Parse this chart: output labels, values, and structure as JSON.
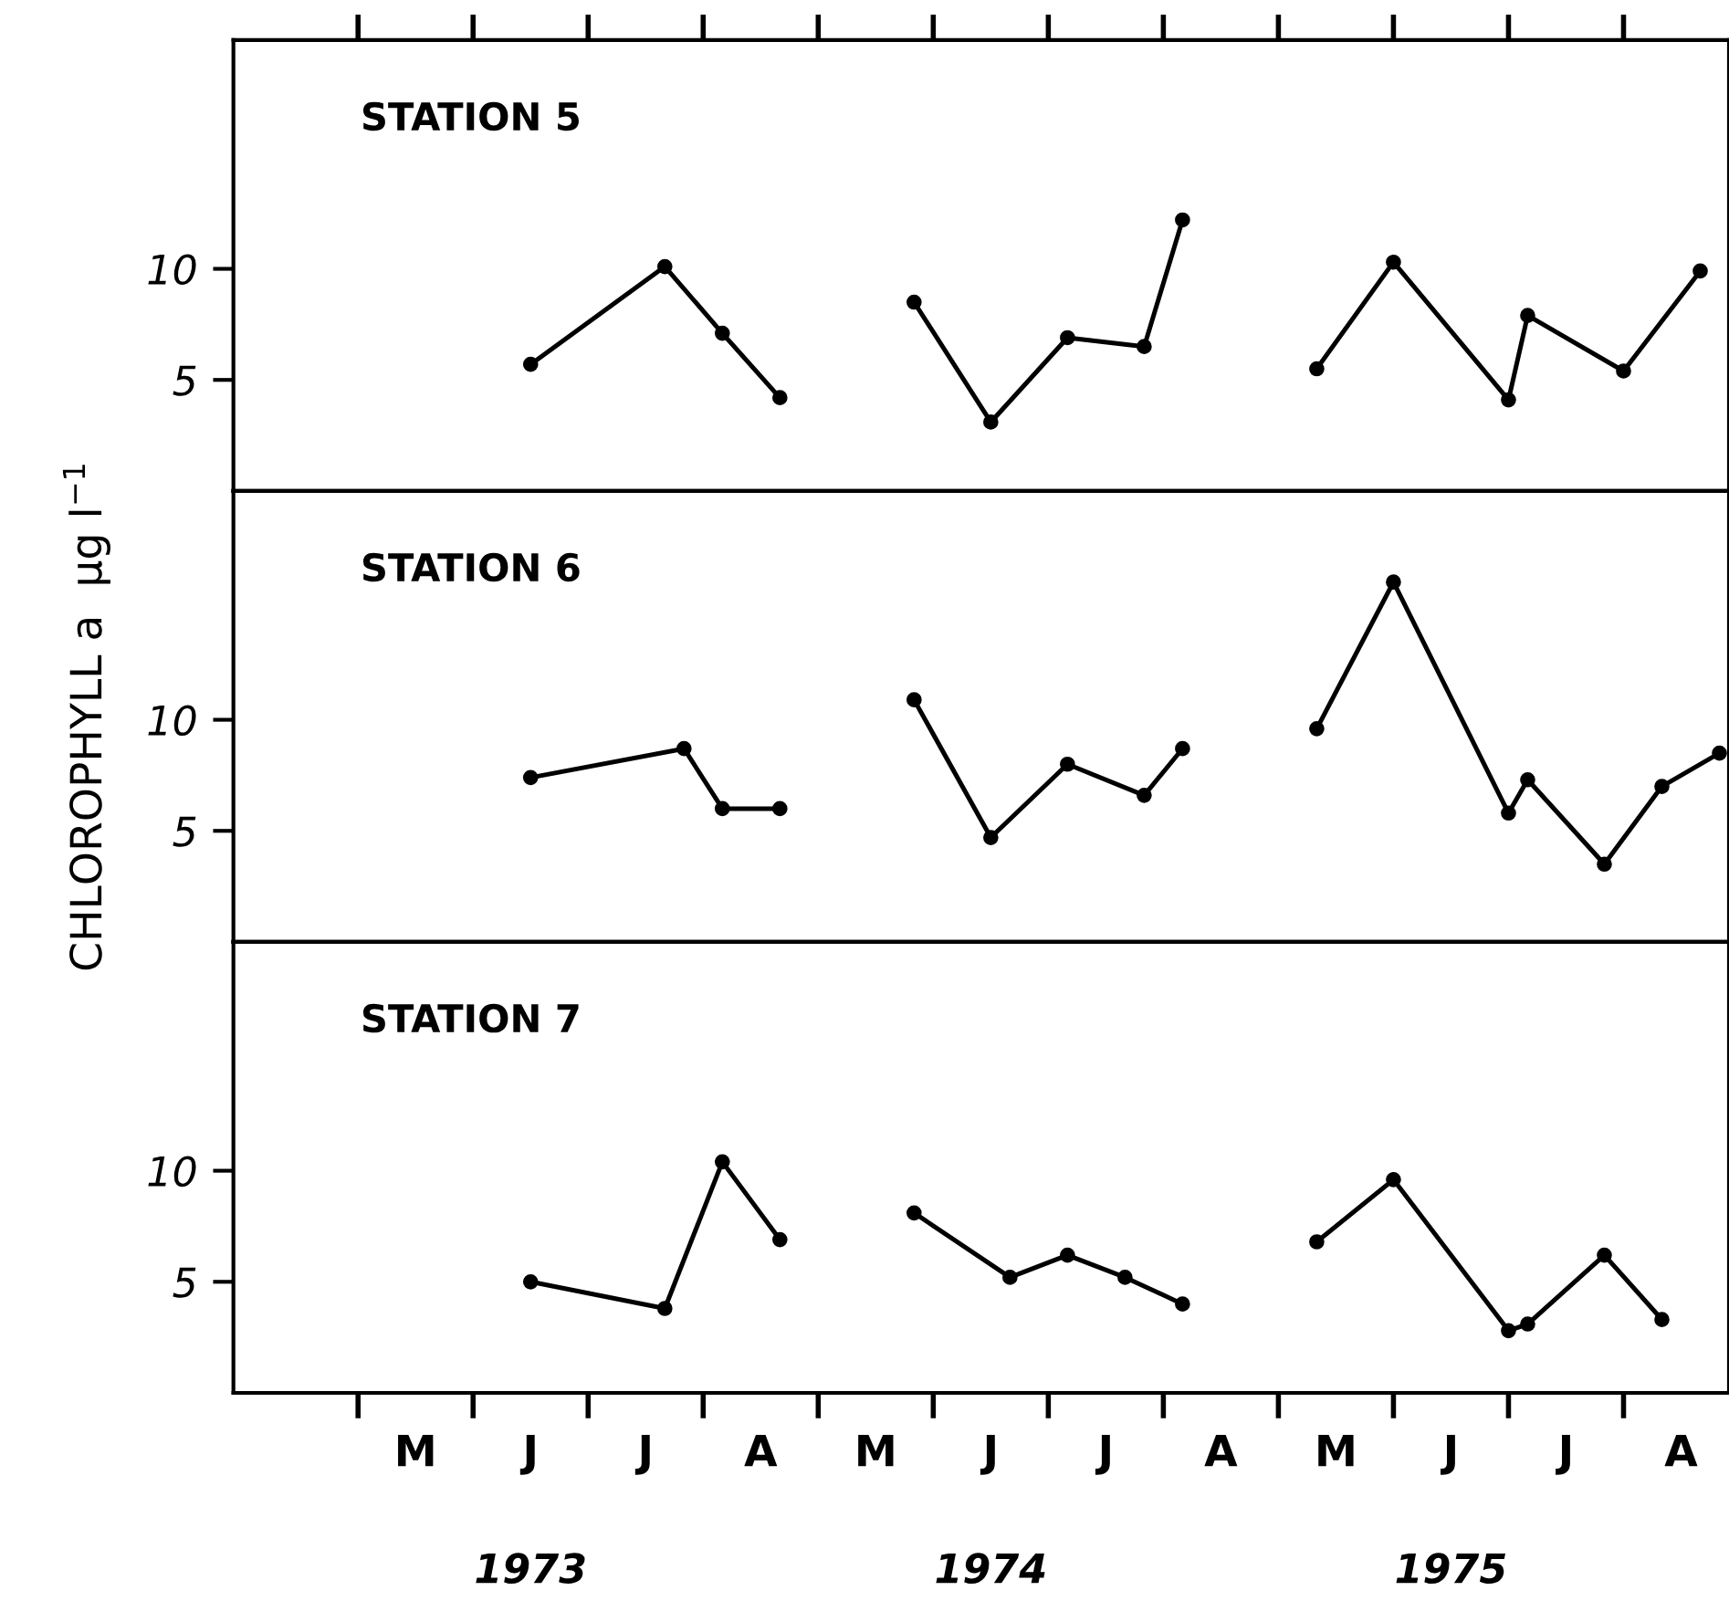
{
  "chart_data": [
    {
      "type": "line",
      "title": "STATION 5",
      "marker": "circle",
      "line_style": "solid",
      "tick_labels": "y",
      "ylim": [
        0,
        20.3
      ],
      "yticks": [
        5,
        10
      ],
      "categories": [
        null,
        null,
        null,
        null,
        null,
        null,
        null,
        null,
        null,
        null,
        null,
        null,
        null,
        null,
        null,
        null,
        null,
        null,
        null,
        null,
        null,
        null,
        null,
        null,
        null,
        null,
        null,
        null,
        null,
        null,
        null,
        null,
        null,
        null,
        null,
        null,
        null,
        null,
        null,
        null,
        null,
        null,
        null,
        null,
        null,
        null,
        null,
        null,
        null,
        null,
        null,
        null,
        null,
        null,
        null,
        null,
        null,
        null,
        null,
        null,
        null,
        null,
        null,
        null,
        null,
        null,
        null,
        null,
        null,
        null,
        null,
        null,
        null,
        null,
        null,
        null,
        null,
        null
      ],
      "series": [
        {
          "color": "#000000",
          "values": [
            null,
            null,
            null,
            null,
            null,
            null,
            null,
            null,
            null,
            null,
            null,
            null,
            null,
            null,
            null,
            5.7,
            null,
            null,
            null,
            null,
            null,
            null,
            10.1,
            null,
            null,
            7.1,
            null,
            null,
            4.2,
            null,
            null,
            null,
            null,
            null,
            null,
            null,
            null,
            null,
            null,
            null,
            null,
            null,
            null,
            null,
            null,
            null,
            null,
            null,
            null,
            null,
            null,
            null,
            null,
            null,
            null,
            null,
            null,
            null,
            null,
            null,
            null,
            null,
            null,
            null,
            null,
            null,
            null,
            null,
            null,
            null,
            null,
            null,
            null,
            null,
            null,
            null,
            null,
            null
          ]
        },
        {
          "color": "#000000",
          "values": [
            null,
            null,
            null,
            null,
            null,
            null,
            null,
            null,
            null,
            null,
            null,
            null,
            null,
            null,
            null,
            null,
            null,
            null,
            null,
            null,
            null,
            null,
            null,
            null,
            null,
            null,
            null,
            null,
            null,
            null,
            null,
            null,
            null,
            null,
            null,
            8.5,
            null,
            null,
            null,
            3.1,
            null,
            null,
            null,
            6.9,
            null,
            null,
            null,
            6.5,
            null,
            12.2,
            null,
            null,
            null,
            null,
            null,
            null,
            null,
            null,
            null,
            null,
            null,
            null,
            null,
            null,
            null,
            null,
            null,
            null,
            null,
            null,
            null,
            null,
            null,
            null,
            null,
            null,
            null,
            null
          ]
        },
        {
          "color": "#000000",
          "values": [
            null,
            null,
            null,
            null,
            null,
            null,
            null,
            null,
            null,
            null,
            null,
            null,
            null,
            null,
            null,
            null,
            null,
            null,
            null,
            null,
            null,
            null,
            null,
            null,
            null,
            null,
            null,
            null,
            null,
            null,
            null,
            null,
            null,
            null,
            null,
            null,
            null,
            null,
            null,
            null,
            null,
            null,
            null,
            null,
            null,
            null,
            null,
            null,
            null,
            null,
            null,
            null,
            null,
            null,
            null,
            null,
            5.5,
            null,
            null,
            null,
            10.3,
            null,
            null,
            null,
            null,
            null,
            4.1,
            7.9,
            null,
            null,
            null,
            null,
            5.4,
            null,
            null,
            null,
            9.9,
            null
          ]
        }
      ]
    },
    {
      "type": "line",
      "title": "STATION 6",
      "ylabel": "CHLOROPHYLL a  µg l$^{−1}$",
      "marker": "circle",
      "line_style": "solid",
      "tick_labels": "y",
      "ylim": [
        0,
        20.3
      ],
      "yticks": [
        5,
        10
      ],
      "categories": [
        null,
        null,
        null,
        null,
        null,
        null,
        null,
        null,
        null,
        null,
        null,
        null,
        null,
        null,
        null,
        null,
        null,
        null,
        null,
        null,
        null,
        null,
        null,
        null,
        null,
        null,
        null,
        null,
        null,
        null,
        null,
        null,
        null,
        null,
        null,
        null,
        null,
        null,
        null,
        null,
        null,
        null,
        null,
        null,
        null,
        null,
        null,
        null,
        null,
        null,
        null,
        null,
        null,
        null,
        null,
        null,
        null,
        null,
        null,
        null,
        null,
        null,
        null,
        null,
        null,
        null,
        null,
        null,
        null,
        null,
        null,
        null,
        null,
        null,
        null,
        null,
        null,
        null
      ],
      "series": [
        {
          "color": "#000000",
          "values": [
            null,
            null,
            null,
            null,
            null,
            null,
            null,
            null,
            null,
            null,
            null,
            null,
            null,
            null,
            null,
            7.4,
            null,
            null,
            null,
            null,
            null,
            null,
            null,
            8.7,
            null,
            6.0,
            null,
            null,
            6.0,
            null,
            null,
            null,
            null,
            null,
            null,
            null,
            null,
            null,
            null,
            null,
            null,
            null,
            null,
            null,
            null,
            null,
            null,
            null,
            null,
            null,
            null,
            null,
            null,
            null,
            null,
            null,
            null,
            null,
            null,
            null,
            null,
            null,
            null,
            null,
            null,
            null,
            null,
            null,
            null,
            null,
            null,
            null,
            null,
            null,
            null,
            null,
            null,
            null
          ]
        },
        {
          "color": "#000000",
          "values": [
            null,
            null,
            null,
            null,
            null,
            null,
            null,
            null,
            null,
            null,
            null,
            null,
            null,
            null,
            null,
            null,
            null,
            null,
            null,
            null,
            null,
            null,
            null,
            null,
            null,
            null,
            null,
            null,
            null,
            null,
            null,
            null,
            null,
            null,
            null,
            10.9,
            null,
            null,
            null,
            4.7,
            null,
            null,
            null,
            8.0,
            null,
            null,
            null,
            6.6,
            null,
            8.7,
            null,
            null,
            null,
            null,
            null,
            null,
            null,
            null,
            null,
            null,
            null,
            null,
            null,
            null,
            null,
            null,
            null,
            null,
            null,
            null,
            null,
            null,
            null,
            null,
            null,
            null,
            null,
            null
          ]
        },
        {
          "color": "#000000",
          "values": [
            null,
            null,
            null,
            null,
            null,
            null,
            null,
            null,
            null,
            null,
            null,
            null,
            null,
            null,
            null,
            null,
            null,
            null,
            null,
            null,
            null,
            null,
            null,
            null,
            null,
            null,
            null,
            null,
            null,
            null,
            null,
            null,
            null,
            null,
            null,
            null,
            null,
            null,
            null,
            null,
            null,
            null,
            null,
            null,
            null,
            null,
            null,
            null,
            null,
            null,
            null,
            null,
            null,
            null,
            null,
            null,
            9.6,
            null,
            null,
            null,
            16.2,
            null,
            null,
            null,
            null,
            null,
            5.8,
            7.3,
            null,
            null,
            null,
            3.5,
            null,
            null,
            7.0,
            null,
            null,
            8.5
          ]
        }
      ]
    },
    {
      "type": "line",
      "title": "STATION 7",
      "marker": "circle",
      "line_style": "solid",
      "ylim": [
        0,
        20.3
      ],
      "yticks": [
        5,
        10
      ],
      "categories": [
        null,
        null,
        null,
        null,
        null,
        null,
        null,
        null,
        null,
        "M",
        null,
        null,
        null,
        null,
        null,
        "J",
        null,
        null,
        null,
        null,
        null,
        "J",
        null,
        null,
        null,
        null,
        null,
        "A",
        null,
        null,
        null,
        null,
        null,
        "M",
        null,
        null,
        null,
        null,
        null,
        "J",
        null,
        null,
        null,
        null,
        null,
        "J",
        null,
        null,
        null,
        null,
        null,
        "A",
        null,
        null,
        null,
        null,
        null,
        "M",
        null,
        null,
        null,
        null,
        null,
        "J",
        null,
        null,
        null,
        null,
        null,
        "J",
        null,
        null,
        null,
        null,
        null,
        "A",
        null,
        null
      ],
      "annotations": [
        "1973",
        "1974",
        "1975"
      ],
      "series": [
        {
          "color": "#000000",
          "values": [
            null,
            null,
            null,
            null,
            null,
            null,
            null,
            null,
            null,
            null,
            null,
            null,
            null,
            null,
            null,
            5.0,
            null,
            null,
            null,
            null,
            null,
            null,
            3.8,
            null,
            null,
            10.4,
            null,
            null,
            6.9,
            null,
            null,
            null,
            null,
            null,
            null,
            null,
            null,
            null,
            null,
            null,
            null,
            null,
            null,
            null,
            null,
            null,
            null,
            null,
            null,
            null,
            null,
            null,
            null,
            null,
            null,
            null,
            null,
            null,
            null,
            null,
            null,
            null,
            null,
            null,
            null,
            null,
            null,
            null,
            null,
            null,
            null,
            null,
            null,
            null,
            null,
            null,
            null,
            null
          ]
        },
        {
          "color": "#000000",
          "values": [
            null,
            null,
            null,
            null,
            null,
            null,
            null,
            null,
            null,
            null,
            null,
            null,
            null,
            null,
            null,
            null,
            null,
            null,
            null,
            null,
            null,
            null,
            null,
            null,
            null,
            null,
            null,
            null,
            null,
            null,
            null,
            null,
            null,
            null,
            null,
            8.1,
            null,
            null,
            null,
            null,
            5.2,
            null,
            null,
            6.2,
            null,
            null,
            5.2,
            null,
            null,
            4.0,
            null,
            null,
            null,
            null,
            null,
            null,
            null,
            null,
            null,
            null,
            null,
            null,
            null,
            null,
            null,
            null,
            null,
            null,
            null,
            null,
            null,
            null,
            null,
            null,
            null,
            null,
            null,
            null
          ]
        },
        {
          "color": "#000000",
          "values": [
            null,
            null,
            null,
            null,
            null,
            null,
            null,
            null,
            null,
            null,
            null,
            null,
            null,
            null,
            null,
            null,
            null,
            null,
            null,
            null,
            null,
            null,
            null,
            null,
            null,
            null,
            null,
            null,
            null,
            null,
            null,
            null,
            null,
            null,
            null,
            null,
            null,
            null,
            null,
            null,
            null,
            null,
            null,
            null,
            null,
            null,
            null,
            null,
            null,
            null,
            null,
            null,
            null,
            null,
            null,
            null,
            6.8,
            null,
            null,
            null,
            9.6,
            null,
            null,
            null,
            null,
            null,
            2.8,
            3.1,
            null,
            null,
            null,
            6.2,
            null,
            null,
            3.3,
            null,
            null,
            null
          ]
        }
      ]
    }
  ]
}
